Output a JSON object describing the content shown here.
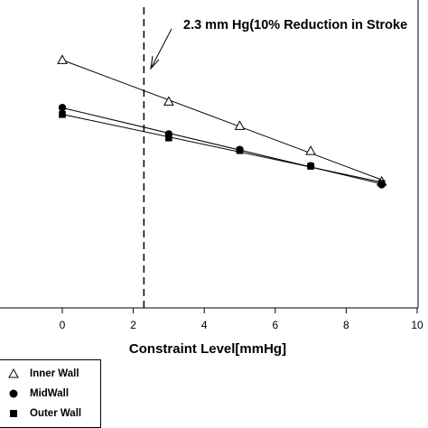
{
  "chart_data": {
    "type": "scatter",
    "title": "",
    "xlabel": "Constraint Level[mmHg]",
    "ylabel": "",
    "xlim": [
      -3,
      10
    ],
    "x_ticks": [
      "0",
      "2",
      "4",
      "6",
      "8",
      "10"
    ],
    "grid": false,
    "legend_position": "bottom-left",
    "annotation": "2.3 mm Hg(10% Reduction in Stroke",
    "vline_x": 2.3,
    "series": [
      {
        "name": "Inner Wall",
        "marker": "triangle-open",
        "x": [
          0,
          3,
          5,
          7,
          9
        ],
        "y": [
          0.763,
          0.635,
          0.56,
          0.483,
          0.389
        ]
      },
      {
        "name": "MidWall",
        "marker": "circle-filled",
        "x": [
          0,
          3,
          5,
          7,
          9
        ],
        "y": [
          0.616,
          0.535,
          0.487,
          0.437,
          0.379
        ]
      },
      {
        "name": "Outer Wall",
        "marker": "square-filled",
        "x": [
          0,
          3,
          5,
          7,
          9
        ],
        "y": [
          0.595,
          0.523,
          0.484,
          0.436,
          0.383
        ]
      }
    ]
  },
  "colors": {
    "axis": "#000000",
    "marker": "#000000",
    "background": "#ffffff"
  }
}
